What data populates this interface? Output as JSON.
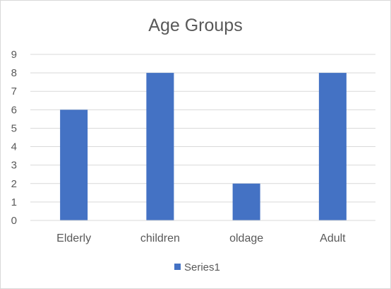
{
  "chart_data": {
    "type": "bar",
    "title": "Age Groups",
    "categories": [
      "Elderly",
      "children",
      "oldage",
      "Adult"
    ],
    "series": [
      {
        "name": "Series1",
        "values": [
          6,
          8,
          2,
          8
        ],
        "color": "#4472c4"
      }
    ],
    "ylim": [
      0,
      9
    ],
    "y_ticks": [
      "0",
      "1",
      "2",
      "3",
      "4",
      "5",
      "6",
      "7",
      "8",
      "9"
    ],
    "grid": true,
    "legend_position": "bottom"
  }
}
